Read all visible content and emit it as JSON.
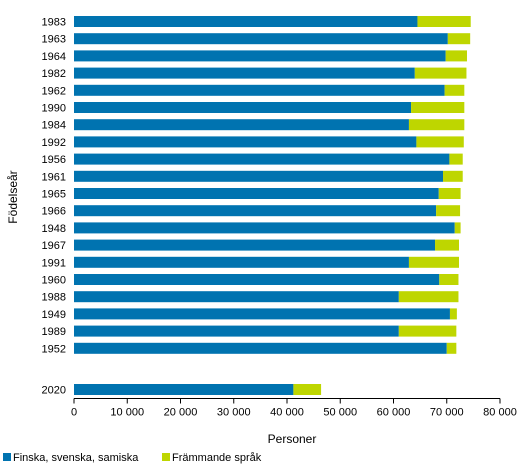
{
  "chart_data": {
    "type": "bar",
    "orientation": "horizontal",
    "stacked": true,
    "categories": [
      "1983",
      "1963",
      "1964",
      "1982",
      "1962",
      "1990",
      "1984",
      "1992",
      "1956",
      "1961",
      "1965",
      "1966",
      "1948",
      "1967",
      "1991",
      "1960",
      "1988",
      "1949",
      "1989",
      "1952",
      "2020"
    ],
    "series": [
      {
        "name": "Finska, svenska, samiska",
        "color": "#0073b0",
        "values": [
          64500,
          70200,
          69800,
          64000,
          69600,
          63300,
          62900,
          64300,
          70500,
          69300,
          68500,
          68000,
          71500,
          67800,
          62900,
          68600,
          61000,
          70600,
          61000,
          70000,
          41200
        ]
      },
      {
        "name": "Främmande språk",
        "color": "#bed600",
        "values": [
          10000,
          4200,
          4000,
          9700,
          3700,
          10000,
          10400,
          8900,
          2500,
          3700,
          4100,
          4500,
          1100,
          4500,
          9400,
          3600,
          11200,
          1300,
          10800,
          1800,
          5200
        ]
      }
    ],
    "xlabel": "Personer",
    "ylabel": "Födelseår",
    "xlim": [
      0,
      80000
    ],
    "xticks": [
      0,
      10000,
      20000,
      30000,
      40000,
      50000,
      60000,
      70000,
      80000
    ],
    "xtick_labels": [
      "0",
      "10 000",
      "20 000",
      "30 000",
      "40 000",
      "50 000",
      "60 000",
      "70 000",
      "80 000"
    ],
    "grid": false,
    "legend_position": "bottom-left"
  }
}
